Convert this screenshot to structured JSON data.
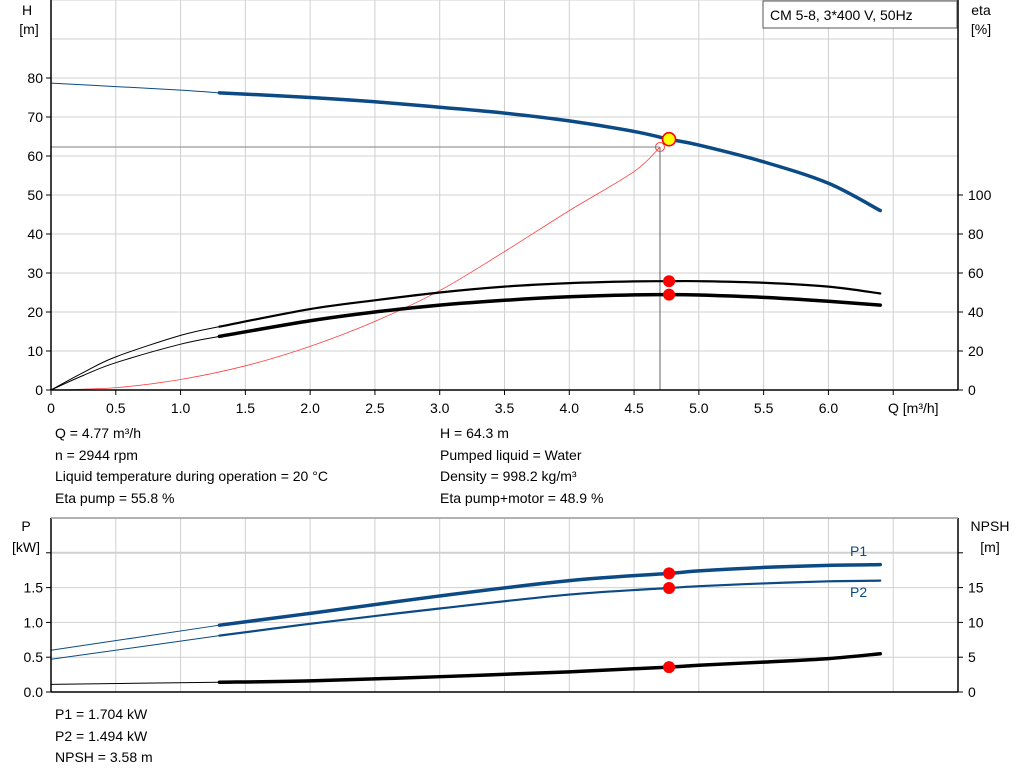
{
  "colors": {
    "head": "#0b4a85",
    "power": "#0b4a85",
    "eta": "#000000",
    "system": "#ff4040",
    "duty_point_fill": "#ffff00",
    "marker": "#ff0000",
    "grid": "#d0d0d0"
  },
  "chart_data": [
    {
      "type": "line",
      "title": "CM 5-8, 3*400 V, 50Hz",
      "xlabel": "Q [m³/h]",
      "ylabel_left": [
        "H",
        "[m]"
      ],
      "ylabel_right": [
        "eta",
        "[%]"
      ],
      "xlim": [
        0,
        7
      ],
      "ylim_left": [
        0,
        100
      ],
      "ylim_right": [
        0,
        200
      ],
      "grid": true,
      "x_ticks": [
        "0",
        "0.5",
        "1.0",
        "1.5",
        "2.0",
        "2.5",
        "3.0",
        "3.5",
        "4.0",
        "4.5",
        "5.0",
        "5.5",
        "6.0"
      ],
      "y_ticks_left": [
        "0",
        "10",
        "20",
        "30",
        "40",
        "50",
        "60",
        "70",
        "80"
      ],
      "y_ticks_right": [
        "0",
        "20",
        "40",
        "60",
        "80",
        "100"
      ],
      "series": [
        {
          "key": "H",
          "axis": "left",
          "x": [
            0,
            0.5,
            1.0,
            1.3,
            2.0,
            2.5,
            3.0,
            3.5,
            4.0,
            4.5,
            4.77,
            5.0,
            5.5,
            6.0,
            6.4
          ],
          "y": [
            78.7,
            77.8,
            76.9,
            76.2,
            75.0,
            73.9,
            72.5,
            71.0,
            69.0,
            66.3,
            64.3,
            62.8,
            58.5,
            53.0,
            46.0
          ]
        },
        {
          "key": "eta_pump",
          "axis": "right",
          "x": [
            0,
            0.25,
            0.5,
            1.0,
            1.3,
            2.0,
            2.5,
            3.0,
            3.5,
            4.0,
            4.5,
            4.77,
            5.0,
            5.5,
            6.0,
            6.4
          ],
          "y": [
            0,
            9,
            17,
            28,
            32.5,
            41.5,
            46,
            50,
            53,
            54.8,
            55.7,
            55.8,
            55.8,
            55,
            53,
            49.5
          ]
        },
        {
          "key": "eta_pump_motor",
          "axis": "right",
          "x": [
            0,
            0.25,
            0.5,
            1.0,
            1.3,
            2.0,
            2.5,
            3.0,
            3.5,
            4.0,
            4.5,
            4.77,
            5.0,
            5.5,
            6.0,
            6.4
          ],
          "y": [
            0,
            7.5,
            14,
            23.5,
            27.5,
            35.5,
            40,
            43.5,
            46,
            47.8,
            48.8,
            48.9,
            48.7,
            47.5,
            45.5,
            43.5
          ]
        },
        {
          "key": "system",
          "axis": "left",
          "x": [
            0,
            0.5,
            1.0,
            1.5,
            2.0,
            2.5,
            3.0,
            3.5,
            4.0,
            4.5,
            4.7
          ],
          "y": [
            0,
            0.6,
            2.7,
            6.2,
            11.2,
            17.6,
            25.5,
            35.5,
            46,
            56,
            62.3
          ]
        }
      ],
      "duty_point": {
        "Q": 4.77,
        "H": 64.3,
        "eta_pump": 55.8,
        "eta_pump_motor": 48.9
      },
      "crosshair": {
        "Q": 4.7,
        "H": 62.3
      }
    },
    {
      "type": "line",
      "ylabel_left": [
        "P",
        "[kW]"
      ],
      "ylabel_right": [
        "NPSH",
        "[m]"
      ],
      "xlim": [
        0,
        7
      ],
      "ylim_left": [
        0,
        2.5
      ],
      "ylim_right": [
        0,
        25
      ],
      "grid": true,
      "y_ticks_left": [
        "0.0",
        "0.5",
        "1.0",
        "1.5"
      ],
      "y_ticks_right": [
        "0",
        "5",
        "10",
        "15"
      ],
      "series": [
        {
          "key": "P1",
          "name": "P1",
          "axis": "left",
          "x": [
            0,
            1.3,
            2.0,
            3.0,
            4.0,
            4.77,
            5.0,
            5.5,
            6.0,
            6.4
          ],
          "y": [
            0.6,
            0.96,
            1.13,
            1.38,
            1.6,
            1.704,
            1.74,
            1.79,
            1.82,
            1.83
          ]
        },
        {
          "key": "P2",
          "name": "P2",
          "axis": "left",
          "x": [
            0,
            1.3,
            2.0,
            3.0,
            4.0,
            4.77,
            5.0,
            5.5,
            6.0,
            6.4
          ],
          "y": [
            0.47,
            0.81,
            0.98,
            1.2,
            1.4,
            1.494,
            1.52,
            1.56,
            1.59,
            1.6
          ]
        },
        {
          "key": "NPSH",
          "axis": "right",
          "x": [
            0,
            1.3,
            2.0,
            3.0,
            4.0,
            4.77,
            5.0,
            5.5,
            6.0,
            6.4
          ],
          "y": [
            1.1,
            1.4,
            1.6,
            2.2,
            2.9,
            3.58,
            3.85,
            4.3,
            4.8,
            5.5
          ]
        }
      ],
      "duty_point": {
        "Q": 4.77,
        "P1": 1.704,
        "P2": 1.494,
        "NPSH": 3.58
      }
    }
  ],
  "info_top": {
    "left": [
      "Q = 4.77 m³/h",
      "n = 2944 rpm",
      "Liquid temperature during operation = 20 °C",
      "Eta pump = 55.8 %"
    ],
    "right": [
      "H = 64.3 m",
      "Pumped liquid = Water",
      "Density = 998.2 kg/m³",
      "Eta pump+motor = 48.9 %"
    ]
  },
  "info_bottom": [
    "P1 = 1.704 kW",
    "P2 = 1.494 kW",
    "NPSH = 3.58 m"
  ]
}
